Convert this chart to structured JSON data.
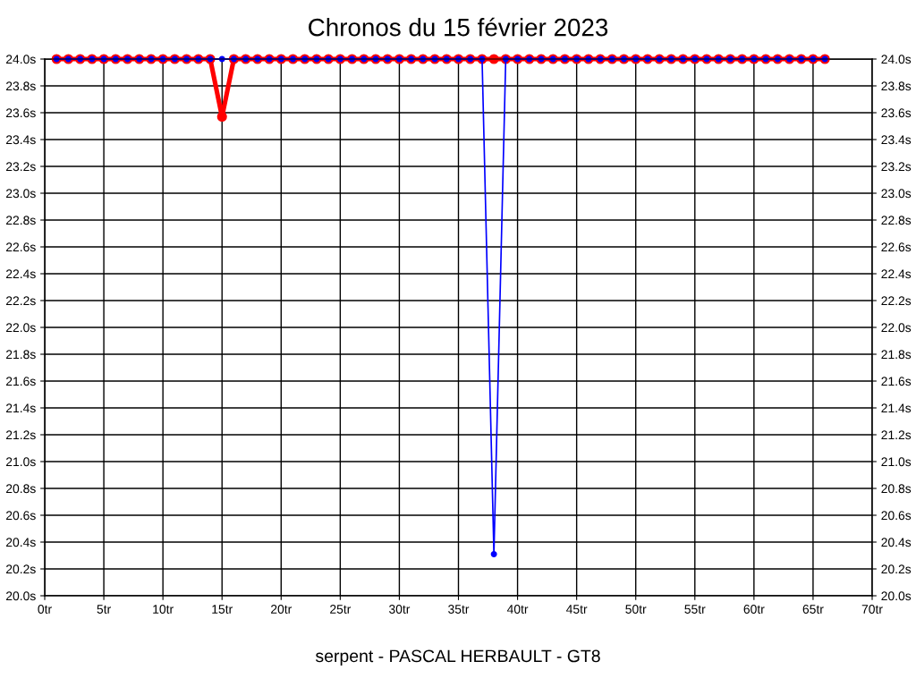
{
  "chart_data": {
    "type": "line",
    "title": "Chronos du 15 février 2023",
    "xlabel": "serpent - PASCAL HERBAULT - GT8",
    "x": [
      1,
      2,
      3,
      4,
      5,
      6,
      7,
      8,
      9,
      10,
      11,
      12,
      13,
      14,
      15,
      16,
      17,
      18,
      19,
      20,
      21,
      22,
      23,
      24,
      25,
      26,
      27,
      28,
      29,
      30,
      31,
      32,
      33,
      34,
      35,
      36,
      37,
      38,
      39,
      40,
      41,
      42,
      43,
      44,
      45,
      46,
      47,
      48,
      49,
      50,
      51,
      52,
      53,
      54,
      55,
      56,
      57,
      58,
      59,
      60,
      61,
      62,
      63,
      64,
      65,
      66
    ],
    "series": [
      {
        "color": "#ff0000",
        "values": [
          24.0,
          24.0,
          24.0,
          24.0,
          24.0,
          24.0,
          24.0,
          24.0,
          24.0,
          24.0,
          24.0,
          24.0,
          24.0,
          24.0,
          23.57,
          24.0,
          24.0,
          24.0,
          24.0,
          24.0,
          24.0,
          24.0,
          24.0,
          24.0,
          24.0,
          24.0,
          24.0,
          24.0,
          24.0,
          24.0,
          24.0,
          24.0,
          24.0,
          24.0,
          24.0,
          24.0,
          24.0,
          24.0,
          24.0,
          24.0,
          24.0,
          24.0,
          24.0,
          24.0,
          24.0,
          24.0,
          24.0,
          24.0,
          24.0,
          24.0,
          24.0,
          24.0,
          24.0,
          24.0,
          24.0,
          24.0,
          24.0,
          24.0,
          24.0,
          24.0,
          24.0,
          24.0,
          24.0,
          24.0,
          24.0,
          24.0
        ]
      },
      {
        "color": "#0000ff",
        "values": [
          24.0,
          24.0,
          24.0,
          24.0,
          24.0,
          24.0,
          24.0,
          24.0,
          24.0,
          24.0,
          24.0,
          24.0,
          24.0,
          24.0,
          24.0,
          24.0,
          24.0,
          24.0,
          24.0,
          24.0,
          24.0,
          24.0,
          24.0,
          24.0,
          24.0,
          24.0,
          24.0,
          24.0,
          24.0,
          24.0,
          24.0,
          24.0,
          24.0,
          24.0,
          24.0,
          24.0,
          24.0,
          20.31,
          24.0,
          24.0,
          24.0,
          24.0,
          24.0,
          24.0,
          24.0,
          24.0,
          24.0,
          24.0,
          24.0,
          24.0,
          24.0,
          24.0,
          24.0,
          24.0,
          24.0,
          24.0,
          24.0,
          24.0,
          24.0,
          24.0,
          24.0,
          24.0,
          24.0,
          24.0,
          24.0,
          24.0
        ]
      }
    ],
    "xlim": [
      0,
      70
    ],
    "xticks": [
      {
        "value": 0,
        "label": "0tr"
      },
      {
        "value": 5,
        "label": "5tr"
      },
      {
        "value": 10,
        "label": "10tr"
      },
      {
        "value": 15,
        "label": "15tr"
      },
      {
        "value": 20,
        "label": "20tr"
      },
      {
        "value": 25,
        "label": "25tr"
      },
      {
        "value": 30,
        "label": "30tr"
      },
      {
        "value": 35,
        "label": "35tr"
      },
      {
        "value": 40,
        "label": "40tr"
      },
      {
        "value": 45,
        "label": "45tr"
      },
      {
        "value": 50,
        "label": "50tr"
      },
      {
        "value": 55,
        "label": "55tr"
      },
      {
        "value": 60,
        "label": "60tr"
      },
      {
        "value": 65,
        "label": "65tr"
      },
      {
        "value": 70,
        "label": "70tr"
      }
    ],
    "ylim": [
      20.0,
      24.0
    ],
    "yticks": [
      {
        "value": 20.0,
        "label": "20.0s"
      },
      {
        "value": 20.2,
        "label": "20.2s"
      },
      {
        "value": 20.4,
        "label": "20.4s"
      },
      {
        "value": 20.6,
        "label": "20.6s"
      },
      {
        "value": 20.8,
        "label": "20.8s"
      },
      {
        "value": 21.0,
        "label": "21.0s"
      },
      {
        "value": 21.2,
        "label": "21.2s"
      },
      {
        "value": 21.4,
        "label": "21.4s"
      },
      {
        "value": 21.6,
        "label": "21.6s"
      },
      {
        "value": 21.8,
        "label": "21.8s"
      },
      {
        "value": 22.0,
        "label": "22.0s"
      },
      {
        "value": 22.2,
        "label": "22.2s"
      },
      {
        "value": 22.4,
        "label": "22.4s"
      },
      {
        "value": 22.6,
        "label": "22.6s"
      },
      {
        "value": 22.8,
        "label": "22.8s"
      },
      {
        "value": 23.0,
        "label": "23.0s"
      },
      {
        "value": 23.2,
        "label": "23.2s"
      },
      {
        "value": 23.4,
        "label": "23.4s"
      },
      {
        "value": 23.6,
        "label": "23.6s"
      },
      {
        "value": 23.8,
        "label": "23.8s"
      },
      {
        "value": 24.0,
        "label": "24.0s"
      }
    ],
    "y2lim": [
      20.0,
      24.0
    ],
    "y2ticks": [
      {
        "value": 20.0,
        "label": "20.0s"
      },
      {
        "value": 20.2,
        "label": "20.2s"
      },
      {
        "value": 20.4,
        "label": "20.4s"
      },
      {
        "value": 20.6,
        "label": "20.6s"
      },
      {
        "value": 20.8,
        "label": "20.8s"
      },
      {
        "value": 21.0,
        "label": "21.0s"
      },
      {
        "value": 21.2,
        "label": "21.2s"
      },
      {
        "value": 21.4,
        "label": "21.4s"
      },
      {
        "value": 21.6,
        "label": "21.6s"
      },
      {
        "value": 21.8,
        "label": "21.8s"
      },
      {
        "value": 22.0,
        "label": "22.0s"
      },
      {
        "value": 22.2,
        "label": "22.2s"
      },
      {
        "value": 22.4,
        "label": "22.4s"
      },
      {
        "value": 22.6,
        "label": "22.6s"
      },
      {
        "value": 22.8,
        "label": "22.8s"
      },
      {
        "value": 23.0,
        "label": "23.0s"
      },
      {
        "value": 23.2,
        "label": "23.2s"
      },
      {
        "value": 23.4,
        "label": "23.4s"
      },
      {
        "value": 23.6,
        "label": "23.6s"
      },
      {
        "value": 23.8,
        "label": "23.8s"
      },
      {
        "value": 24.0,
        "label": "24.0s"
      }
    ],
    "grid": true,
    "legend": false,
    "marker": "circle",
    "line_style": "solid"
  }
}
